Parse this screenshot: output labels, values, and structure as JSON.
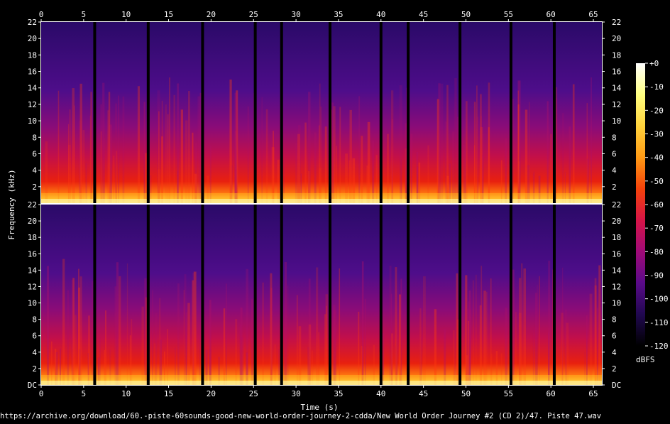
{
  "chart_data": {
    "type": "heatmap",
    "title": "",
    "xlabel": "Time (s)",
    "ylabel": "Frequency (kHz)",
    "footer": "https://archive.org/download/60.-piste-60sounds-good-new-world-order-journey-2-cdda/New World Order Journey #2 (CD 2)/47. Piste 47.wav",
    "x_ticks": [
      "0",
      "5",
      "10",
      "15",
      "20",
      "25",
      "30",
      "35",
      "40",
      "45",
      "50",
      "55",
      "60",
      "65"
    ],
    "x_range": [
      0,
      66
    ],
    "channels": [
      {
        "name": "top",
        "y_range": [
          0,
          22
        ],
        "y_tick_labels": [
          "2",
          "4",
          "6",
          "8",
          "10",
          "12",
          "14",
          "16",
          "18",
          "20",
          "22"
        ]
      },
      {
        "name": "bottom",
        "y_range": [
          0,
          22
        ],
        "y_tick_labels": [
          "DC",
          "2",
          "4",
          "6",
          "8",
          "10",
          "12",
          "14",
          "16",
          "18",
          "20",
          "22"
        ]
      }
    ],
    "silence_markers_s": [
      6.3,
      12.6,
      19.0,
      25.2,
      28.3,
      34.0,
      40.0,
      43.2,
      49.3,
      55.3,
      60.4
    ],
    "colorbar": {
      "unit": "dBFS",
      "ticks": [
        "+0",
        "-10",
        "-20",
        "-30",
        "-40",
        "-50",
        "-60",
        "-70",
        "-80",
        "-90",
        "-100",
        "-110",
        "-120"
      ],
      "range": [
        -120,
        0
      ],
      "gradient": [
        "#ffffff",
        "#ffff80",
        "#ffd23c",
        "#ff9a14",
        "#f5420a",
        "#d61447",
        "#a00a78",
        "#5a0a8a",
        "#200850",
        "#000000"
      ]
    }
  }
}
